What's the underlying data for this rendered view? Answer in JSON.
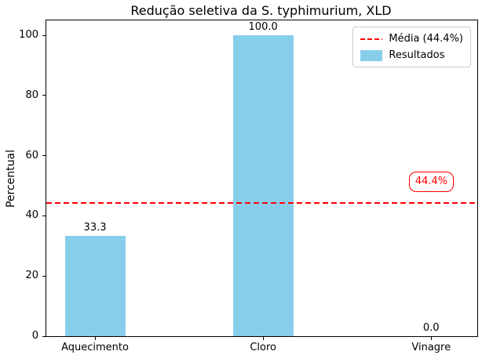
{
  "chart_data": {
    "type": "bar",
    "title": "Redução seletiva da S. typhimurium, XLD",
    "ylabel": "Percentual",
    "xlabel": "",
    "categories": [
      "Aquecimento",
      "Cloro",
      "Vinagre"
    ],
    "values": [
      33.3,
      100.0,
      0.0
    ],
    "bar_labels": [
      "33.3",
      "100.0",
      "0.0"
    ],
    "bar_color": "#87ceeb",
    "yticks": [
      0,
      20,
      40,
      60,
      80,
      100
    ],
    "ylim": [
      0,
      105
    ],
    "grid": false,
    "mean_line": {
      "value": 44.4,
      "annotation": "44.4%",
      "color": "#ff0000",
      "style": "dashed"
    },
    "legend": {
      "position": "upper right",
      "entries": [
        {
          "label": "Média (44.4%)",
          "type": "line",
          "color": "#ff0000",
          "dashed": true
        },
        {
          "label": "Resultados",
          "type": "patch",
          "color": "#87ceeb"
        }
      ]
    }
  }
}
